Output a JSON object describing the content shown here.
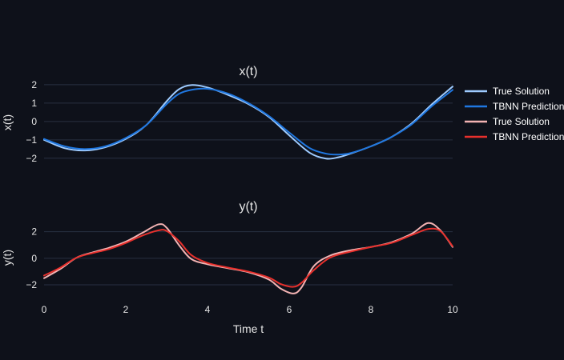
{
  "chart_data": {
    "type": "line",
    "xlabel": "Time t",
    "x_ticks": [
      0,
      2,
      4,
      6,
      8,
      10
    ],
    "xlim": [
      0,
      10
    ],
    "legend_placement": "right",
    "subplots": [
      {
        "id": "x",
        "title": "x(t)",
        "ylabel": "x(t)",
        "ylim": [
          -2.4,
          2.3
        ],
        "y_ticks": [
          2,
          1,
          0,
          -1,
          -2
        ],
        "y_tick_labels": [
          "2",
          "1",
          "0",
          "−1",
          "−2"
        ],
        "grid": true,
        "series": [
          {
            "name": "True Solution",
            "color": "#9ecbff",
            "x": [
              0,
              0.5,
              1,
              1.5,
              2,
              2.5,
              3,
              3.3,
              3.6,
              4,
              4.5,
              5,
              5.5,
              6,
              6.5,
              6.9,
              7.2,
              7.5,
              8,
              8.5,
              9,
              9.5,
              10
            ],
            "y": [
              -1.0,
              -1.45,
              -1.58,
              -1.4,
              -0.95,
              -0.2,
              1.1,
              1.75,
              1.98,
              1.85,
              1.45,
              0.95,
              0.25,
              -0.75,
              -1.7,
              -2.02,
              -1.95,
              -1.75,
              -1.35,
              -0.85,
              -0.1,
              0.95,
              1.9
            ]
          },
          {
            "name": "TBNN Prediction",
            "color": "#1f77e0",
            "x": [
              0,
              0.5,
              1,
              1.5,
              2,
              2.5,
              3,
              3.3,
              3.6,
              4,
              4.5,
              5,
              5.5,
              6,
              6.5,
              6.9,
              7.2,
              7.5,
              8,
              8.5,
              9,
              9.5,
              10
            ],
            "y": [
              -0.95,
              -1.35,
              -1.5,
              -1.35,
              -0.9,
              -0.2,
              0.95,
              1.5,
              1.72,
              1.78,
              1.52,
              1.0,
              0.3,
              -0.6,
              -1.45,
              -1.75,
              -1.8,
              -1.72,
              -1.35,
              -0.85,
              -0.15,
              0.85,
              1.72
            ]
          }
        ]
      },
      {
        "id": "y",
        "title": "y(t)",
        "ylabel": "y(t)",
        "ylim": [
          -3.2,
          3.3
        ],
        "y_ticks": [
          2,
          0,
          -2
        ],
        "y_tick_labels": [
          "2",
          "0",
          "−2"
        ],
        "grid": true,
        "series": [
          {
            "name": "True Solution",
            "color": "#f3b3b3",
            "x": [
              0,
              0.4,
              0.8,
              1.2,
              1.6,
              2,
              2.4,
              2.8,
              3,
              3.3,
              3.6,
              4,
              4.5,
              5,
              5.5,
              5.8,
              6.1,
              6.3,
              6.6,
              7,
              7.5,
              8,
              8.5,
              9,
              9.4,
              9.7,
              10
            ],
            "y": [
              -1.5,
              -0.8,
              0.05,
              0.45,
              0.8,
              1.25,
              1.9,
              2.55,
              2.3,
              1.0,
              -0.05,
              -0.45,
              -0.75,
              -1.05,
              -1.6,
              -2.3,
              -2.65,
              -2.2,
              -0.6,
              0.2,
              0.6,
              0.85,
              1.2,
              1.85,
              2.65,
              2.1,
              0.85
            ]
          },
          {
            "name": "TBNN Prediction",
            "color": "#e8302c",
            "x": [
              0,
              0.4,
              0.8,
              1.2,
              1.6,
              2,
              2.4,
              2.8,
              3,
              3.3,
              3.6,
              4,
              4.5,
              5,
              5.5,
              5.8,
              6.1,
              6.3,
              6.6,
              7,
              7.5,
              8,
              8.5,
              9,
              9.4,
              9.7,
              10
            ],
            "y": [
              -1.3,
              -0.7,
              0.05,
              0.4,
              0.7,
              1.15,
              1.7,
              2.1,
              2.05,
              1.3,
              0.25,
              -0.35,
              -0.7,
              -1.0,
              -1.45,
              -1.95,
              -2.15,
              -1.85,
              -0.9,
              0.05,
              0.5,
              0.85,
              1.15,
              1.75,
              2.2,
              2.05,
              0.9
            ]
          }
        ]
      }
    ]
  },
  "legend": {
    "items": [
      {
        "label": "True Solution",
        "color": "#9ecbff"
      },
      {
        "label": "TBNN Prediction",
        "color": "#1f77e0"
      },
      {
        "label": "True Solution",
        "color": "#f3b3b3"
      },
      {
        "label": "TBNN Prediction",
        "color": "#e8302c"
      }
    ]
  }
}
